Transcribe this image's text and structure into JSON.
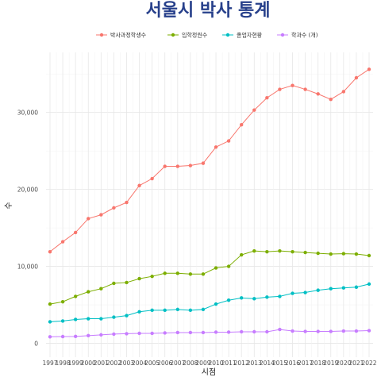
{
  "chart_data": {
    "type": "line",
    "title": "서울시 박사 통계",
    "xlabel": "시점",
    "ylabel": "수",
    "ylim": [
      0,
      36000
    ],
    "yticks": [
      0,
      10000,
      20000,
      30000
    ],
    "ytick_labels": [
      "0",
      "10,000",
      "20,000",
      "30,000"
    ],
    "x": [
      1997,
      1998,
      1999,
      2000,
      2001,
      2002,
      2003,
      2004,
      2005,
      2006,
      2007,
      2008,
      2009,
      2010,
      2011,
      2012,
      2013,
      2014,
      2015,
      2016,
      2017,
      2018,
      2019,
      2020,
      2021,
      2022
    ],
    "legend_position": "top",
    "grid": true,
    "series": [
      {
        "name": "박사과정학생수",
        "color": "#f8766d",
        "values": [
          11900,
          13200,
          14400,
          16200,
          16700,
          17600,
          18300,
          20500,
          21400,
          23000,
          23000,
          23100,
          23400,
          25500,
          26300,
          28400,
          30300,
          31900,
          33000,
          33500,
          33000,
          32400,
          31700,
          32700,
          34500,
          35600
        ]
      },
      {
        "name": "입학정원수",
        "color": "#7cae00",
        "values": [
          5100,
          5400,
          6100,
          6700,
          7100,
          7800,
          7900,
          8400,
          8700,
          9100,
          9100,
          9000,
          9000,
          9800,
          10000,
          11500,
          12000,
          11900,
          12000,
          11900,
          11800,
          11700,
          11600,
          11650,
          11600,
          11400
        ]
      },
      {
        "name": "졸업자현황",
        "color": "#00bfc4",
        "values": [
          2800,
          2900,
          3100,
          3200,
          3200,
          3400,
          3600,
          4100,
          4300,
          4300,
          4400,
          4300,
          4400,
          5100,
          5600,
          5900,
          5800,
          6000,
          6100,
          6500,
          6600,
          6900,
          7100,
          7200,
          7300,
          7700
        ]
      },
      {
        "name": "학과수 (개)",
        "color": "#c77cff",
        "values": [
          850,
          880,
          900,
          1000,
          1100,
          1200,
          1250,
          1300,
          1300,
          1350,
          1400,
          1400,
          1400,
          1450,
          1450,
          1500,
          1500,
          1500,
          1800,
          1600,
          1550,
          1550,
          1550,
          1600,
          1600,
          1650
        ]
      }
    ]
  }
}
